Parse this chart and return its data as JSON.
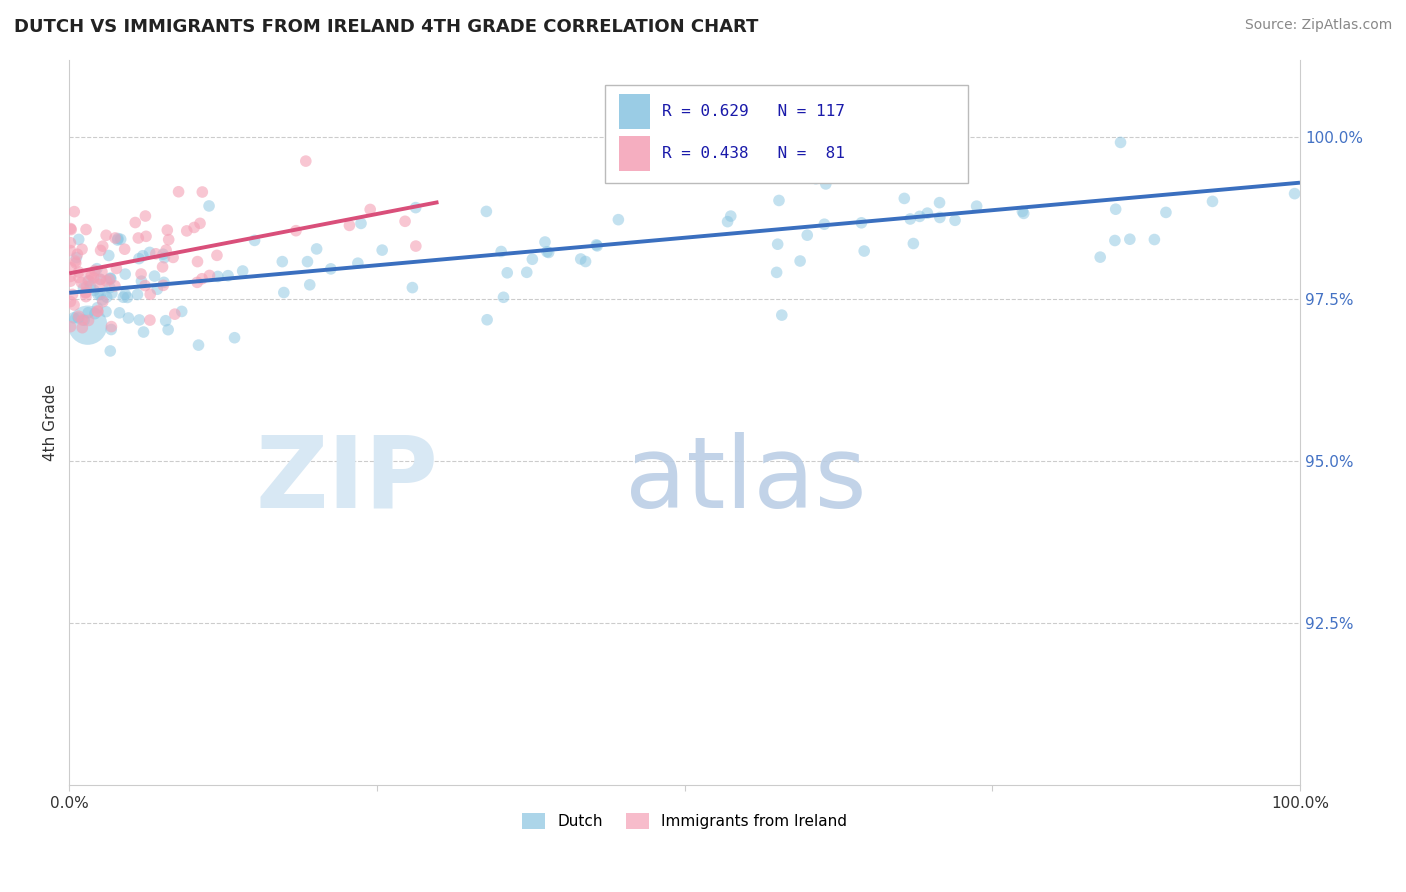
{
  "title": "DUTCH VS IMMIGRANTS FROM IRELAND 4TH GRADE CORRELATION CHART",
  "source": "Source: ZipAtlas.com",
  "ylabel": "4th Grade",
  "y_tick_vals": [
    92.5,
    95.0,
    97.5,
    100.0
  ],
  "x_range": [
    0.0,
    100.0
  ],
  "y_range": [
    90.0,
    101.2
  ],
  "dutch_color": "#89c4e1",
  "ireland_color": "#f4a0b5",
  "dutch_trendline_color": "#3a6fbf",
  "ireland_trendline_color": "#d94f7a",
  "background_color": "#ffffff",
  "legend_r_dutch": "R = 0.629",
  "legend_n_dutch": "N = 117",
  "legend_r_ireland": "R = 0.438",
  "legend_n_ireland": "N =  81",
  "legend_text_color": "#1a1aaa",
  "watermark_zip_color": "#d8e8f4",
  "watermark_atlas_color": "#b8cce4"
}
